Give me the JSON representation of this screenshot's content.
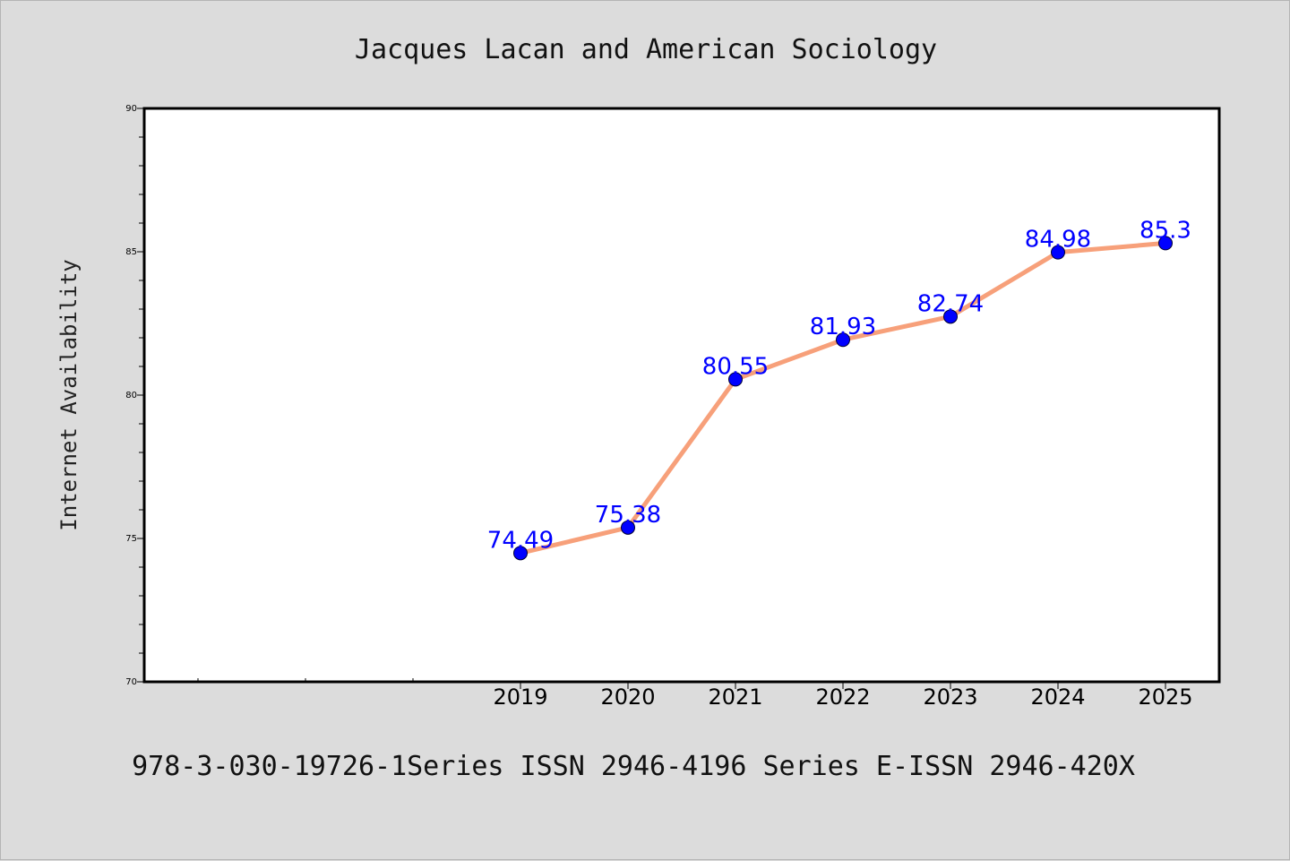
{
  "chart_data": {
    "type": "line",
    "title": "Jacques Lacan and American Sociology",
    "ylabel": "Internet Availability",
    "xlabel": "",
    "footer": "978-3-030-19726-1Series ISSN 2946-4196 Series E-ISSN 2946-420X",
    "categories": [
      "2019",
      "2020",
      "2021",
      "2022",
      "2023",
      "2024",
      "2025"
    ],
    "series": [
      {
        "values": [
          74.49,
          75.38,
          80.55,
          81.93,
          82.74,
          84.98,
          85.3
        ]
      }
    ],
    "data_labels": [
      "74.49",
      "75.38",
      "80.55",
      "81.93",
      "82.74",
      "84.98",
      "85.3"
    ],
    "ylim": [
      70,
      90
    ],
    "yticks": [
      70,
      75,
      80,
      85,
      90
    ],
    "grid": false,
    "colors": {
      "line": "#f7a07a",
      "marker": "#0000ff",
      "data_label": "#0000ff",
      "background": "#dcdcdc",
      "plot_background": "#ffffff"
    }
  }
}
